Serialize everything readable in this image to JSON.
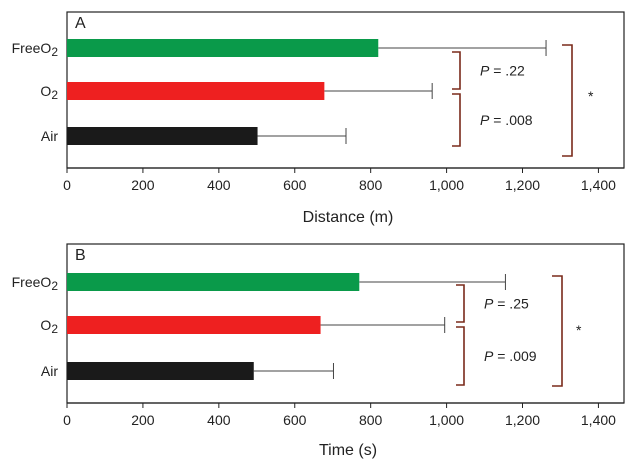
{
  "chart_data": [
    {
      "type": "bar",
      "orientation": "horizontal",
      "panel": "A",
      "categories": [
        "FreeO2",
        "O2",
        "Air"
      ],
      "category_labels": [
        {
          "base": "FreeO",
          "sub": "2"
        },
        {
          "base": "O",
          "sub": "2"
        },
        {
          "base": "Air",
          "sub": ""
        }
      ],
      "values": [
        820,
        678,
        502
      ],
      "error_upper": [
        1262,
        962,
        735
      ],
      "colors": [
        "#0a9a4a",
        "#ee2020",
        "#1a1a1a"
      ],
      "xlabel": "Distance (m)",
      "xlim": [
        0,
        1470
      ],
      "xticks": [
        0,
        200,
        400,
        600,
        800,
        1000,
        1200,
        1400
      ],
      "xtick_labels": [
        "0",
        "200",
        "400",
        "600",
        "800",
        "1,000",
        "1,200",
        "1,400"
      ],
      "grid": false,
      "annotations": [
        {
          "between": [
            "FreeO2",
            "O2"
          ],
          "text": "= .22",
          "prefix": "P"
        },
        {
          "between": [
            "O2",
            "Air"
          ],
          "text": "= .008",
          "prefix": "P"
        },
        {
          "between": [
            "FreeO2",
            "Air"
          ],
          "text": "*",
          "prefix": ""
        }
      ]
    },
    {
      "type": "bar",
      "orientation": "horizontal",
      "panel": "B",
      "categories": [
        "FreeO2",
        "O2",
        "Air"
      ],
      "category_labels": [
        {
          "base": "FreeO",
          "sub": "2"
        },
        {
          "base": "O",
          "sub": "2"
        },
        {
          "base": "Air",
          "sub": ""
        }
      ],
      "values": [
        770,
        668,
        492
      ],
      "error_upper": [
        1155,
        995,
        702
      ],
      "colors": [
        "#0a9a4a",
        "#ee2020",
        "#1a1a1a"
      ],
      "xlabel": "Time (s)",
      "xlim": [
        0,
        1470
      ],
      "xticks": [
        0,
        200,
        400,
        600,
        800,
        1000,
        1200,
        1400
      ],
      "xtick_labels": [
        "0",
        "200",
        "400",
        "600",
        "800",
        "1,000",
        "1,200",
        "1,400"
      ],
      "grid": false,
      "annotations": [
        {
          "between": [
            "FreeO2",
            "O2"
          ],
          "text": "= .25",
          "prefix": "P"
        },
        {
          "between": [
            "O2",
            "Air"
          ],
          "text": "= .009",
          "prefix": "P"
        },
        {
          "between": [
            "FreeO2",
            "Air"
          ],
          "text": "*",
          "prefix": ""
        }
      ]
    }
  ]
}
